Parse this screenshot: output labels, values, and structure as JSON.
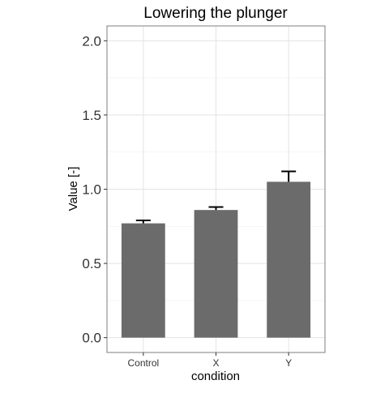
{
  "chart_data": {
    "type": "bar",
    "title": "Lowering the plunger",
    "xlabel": "condition",
    "ylabel": "Value [-]",
    "categories": [
      "Control",
      "X",
      "Y"
    ],
    "values": [
      0.77,
      0.86,
      1.05
    ],
    "error_upper": [
      0.79,
      0.88,
      1.12
    ],
    "ylim": [
      -0.1,
      2.1
    ],
    "yticks": [
      0.0,
      0.5,
      1.0,
      1.5,
      2.0
    ],
    "ytick_labels": [
      "0.0",
      "0.5",
      "1.0",
      "1.5",
      "2.0"
    ],
    "grid": true,
    "bar_color": "#6b6b6b",
    "error_bar_color": "#000000",
    "legend": "none"
  }
}
